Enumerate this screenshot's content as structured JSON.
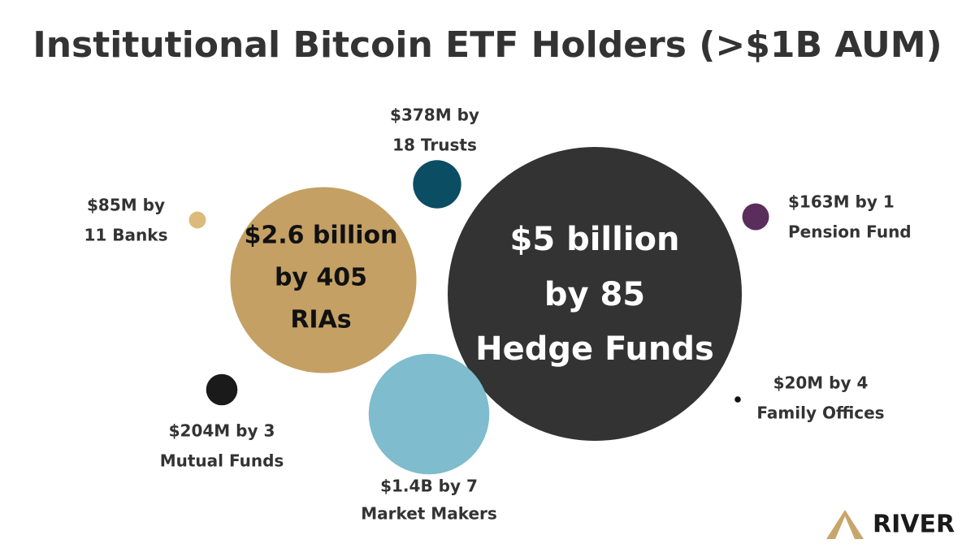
{
  "chart_data": {
    "type": "bubble",
    "title": "Institutional Bitcoin ETF Holders (>$1B AUM)",
    "categories": [
      "Hedge Funds",
      "RIAs",
      "Market Makers",
      "Trusts",
      "Mutual Funds",
      "Pension Fund",
      "Banks",
      "Family Offices"
    ],
    "values": [
      5000,
      2600,
      1400,
      378,
      204,
      163,
      85,
      20
    ],
    "value_labels": [
      [
        "$5 billion",
        "by 85",
        "Hedge Funds"
      ],
      [
        "$2.6 billion",
        "by 405",
        "RIAs"
      ],
      [
        "$1.4B by 7",
        "Market Makers"
      ],
      [
        "$378M by",
        "18 Trusts"
      ],
      [
        "$204M by 3",
        "Mutual Funds"
      ],
      [
        "$163M by 1",
        "Pension Fund"
      ],
      [
        "$85M by",
        "11 Banks"
      ],
      [
        "$20M by 4",
        "Family Offices"
      ]
    ],
    "colors": [
      "#333333",
      "#c4a064",
      "#7fbccd",
      "#0b4d63",
      "#1a1a1a",
      "#5a2d5c",
      "#dbbb7c",
      "#111111"
    ]
  },
  "brand": "RIVER"
}
